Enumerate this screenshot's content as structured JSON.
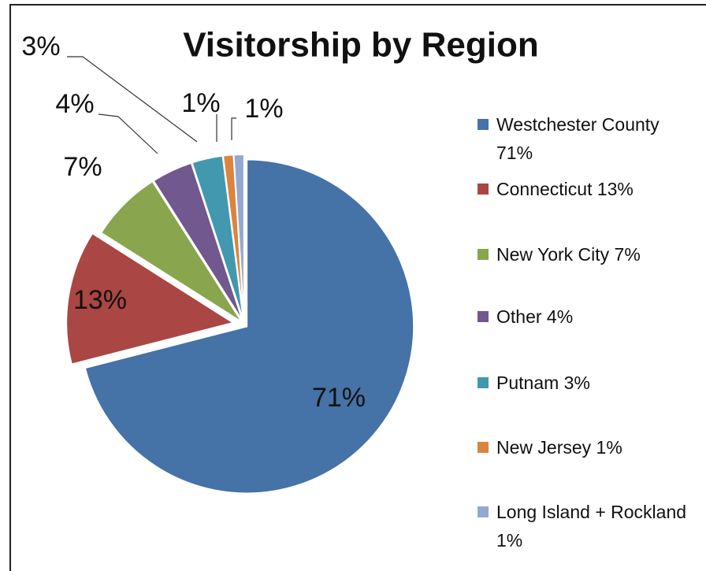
{
  "chart_data": {
    "type": "pie",
    "title": "Visitorship by Region",
    "categories": [
      "Westchester County 71%",
      "Connecticut 13%",
      "New York City 7%",
      "Other 4%",
      "Putnam 3%",
      "New Jersey 1%",
      "Long Island + Rockland  1%"
    ],
    "values": [
      71,
      13,
      7,
      4,
      3,
      1,
      1
    ],
    "value_labels": [
      "71%",
      "13%",
      "7%",
      "4%",
      "3%",
      "1%",
      "1%"
    ],
    "colors": [
      "#4572a7",
      "#aa4643",
      "#89a54e",
      "#71588f",
      "#4198af",
      "#db843d",
      "#93a9cf"
    ],
    "legend": "right"
  }
}
